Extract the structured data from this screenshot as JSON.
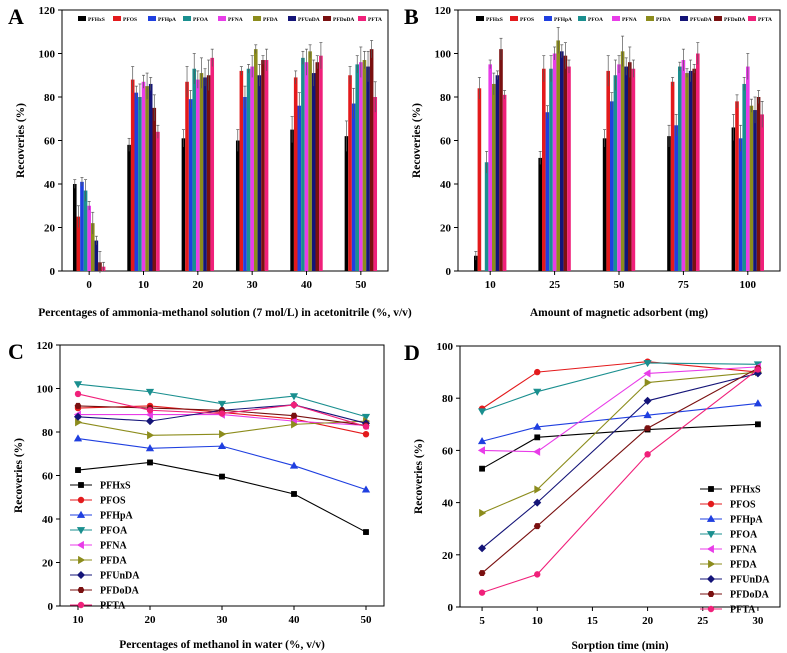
{
  "colors": [
    "#000000",
    "#e31a1c",
    "#1f3fe0",
    "#1a8f8f",
    "#e83ce8",
    "#8c8c1c",
    "#141478",
    "#7a1010",
    "#f0207a"
  ],
  "chart_data": [
    {
      "panel": "A",
      "type": "bar",
      "xlabel": "Percentages of ammonia-methanol solution (7 mol/L) in acetonitrile (%, v/v)",
      "ylabel": "Recoveries (%)",
      "ylim": [
        0,
        120
      ],
      "yticks": [
        0,
        20,
        40,
        60,
        80,
        100,
        120
      ],
      "categories": [
        "0",
        "10",
        "20",
        "30",
        "40",
        "50"
      ],
      "legend": "top",
      "series": [
        {
          "name": "PFHxS",
          "values": [
            40,
            58,
            61,
            60,
            65,
            62
          ]
        },
        {
          "name": "PFOS",
          "values": [
            25,
            88,
            87,
            92,
            89,
            90
          ]
        },
        {
          "name": "PFHpA",
          "values": [
            41,
            82,
            79,
            80,
            76,
            77
          ]
        },
        {
          "name": "PFOA",
          "values": [
            37,
            80,
            93,
            93,
            98,
            95
          ]
        },
        {
          "name": "PFNA",
          "values": [
            30,
            87,
            88,
            94,
            96,
            96
          ]
        },
        {
          "name": "PFDA",
          "values": [
            22,
            85,
            91,
            102,
            101,
            97
          ]
        },
        {
          "name": "PFUnDA",
          "values": [
            14,
            86,
            89,
            90,
            91,
            94
          ]
        },
        {
          "name": "PFDoDA",
          "values": [
            4,
            75,
            90,
            97,
            96,
            102
          ]
        },
        {
          "name": "PFTA",
          "values": [
            2,
            64,
            98,
            97,
            99,
            80
          ]
        }
      ]
    },
    {
      "panel": "B",
      "type": "bar",
      "xlabel": "Amount of magnetic adsorbent (mg)",
      "ylabel": "Recoveries (%)",
      "ylim": [
        0,
        120
      ],
      "yticks": [
        0,
        20,
        40,
        60,
        80,
        100,
        120
      ],
      "categories": [
        "10",
        "25",
        "50",
        "75",
        "100"
      ],
      "legend": "top",
      "series": [
        {
          "name": "PFHxS",
          "values": [
            7,
            52,
            61,
            62,
            66
          ]
        },
        {
          "name": "PFOS",
          "values": [
            84,
            93,
            92,
            87,
            78
          ]
        },
        {
          "name": "PFHpA",
          "values": [
            0,
            73,
            78,
            67,
            61
          ]
        },
        {
          "name": "PFOA",
          "values": [
            50,
            93,
            90,
            94,
            86
          ]
        },
        {
          "name": "PFNA",
          "values": [
            95,
            100,
            95,
            97,
            94
          ]
        },
        {
          "name": "PFDA",
          "values": [
            86,
            106,
            101,
            91,
            76
          ]
        },
        {
          "name": "PFUnDA",
          "values": [
            90,
            101,
            94,
            92,
            74
          ]
        },
        {
          "name": "PFDoDA",
          "values": [
            102,
            99,
            96,
            93,
            80
          ]
        },
        {
          "name": "PFTA",
          "values": [
            81,
            94,
            93,
            100,
            72
          ]
        }
      ]
    },
    {
      "panel": "C",
      "type": "line",
      "xlabel": "Percentages of methanol in water (%, v/v)",
      "ylabel": "Recoveries (%)",
      "xlim": [
        7.5,
        52.5
      ],
      "ylim": [
        0,
        120
      ],
      "xticks": [
        10,
        20,
        30,
        40,
        50
      ],
      "yticks": [
        0,
        20,
        40,
        60,
        80,
        100,
        120
      ],
      "x": [
        10,
        20,
        30,
        40,
        50
      ],
      "legend": "bottom-left",
      "series": [
        {
          "name": "PFHxS",
          "marker": "square",
          "values": [
            62.5,
            66,
            59.5,
            51.5,
            34
          ]
        },
        {
          "name": "PFOS",
          "marker": "circle",
          "values": [
            91,
            92,
            89,
            86,
            79
          ]
        },
        {
          "name": "PFHpA",
          "marker": "triangle-up",
          "values": [
            77,
            72.5,
            73.5,
            64.5,
            53.5
          ]
        },
        {
          "name": "PFOA",
          "marker": "triangle-down",
          "values": [
            102,
            98.5,
            93,
            96.5,
            87
          ]
        },
        {
          "name": "PFNA",
          "marker": "triangle-left",
          "values": [
            88,
            88,
            88,
            85,
            83
          ]
        },
        {
          "name": "PFDA",
          "marker": "triangle-right",
          "values": [
            84.5,
            78.5,
            79,
            83.5,
            85
          ]
        },
        {
          "name": "PFUnDA",
          "marker": "diamond",
          "values": [
            87,
            85,
            90,
            92.5,
            84
          ]
        },
        {
          "name": "PFDoDA",
          "marker": "hexagon",
          "values": [
            92,
            91,
            90,
            87.5,
            83
          ]
        },
        {
          "name": "PFTA",
          "marker": "circle",
          "values": [
            97.5,
            90,
            88.5,
            92.5,
            82.5
          ]
        }
      ]
    },
    {
      "panel": "D",
      "type": "line",
      "xlabel": "Sorption time (min)",
      "ylabel": "Recoveries (%)",
      "xlim": [
        3,
        32
      ],
      "ylim": [
        0,
        100
      ],
      "xticks": [
        5,
        10,
        15,
        20,
        25,
        30
      ],
      "yticks": [
        0,
        20,
        40,
        60,
        80,
        100
      ],
      "x": [
        5,
        10,
        20,
        30
      ],
      "legend": "bottom-right",
      "series": [
        {
          "name": "PFHxS",
          "marker": "square",
          "values": [
            53,
            65,
            68,
            70
          ]
        },
        {
          "name": "PFOS",
          "marker": "circle",
          "values": [
            76,
            90,
            94,
            90
          ]
        },
        {
          "name": "PFHpA",
          "marker": "triangle-up",
          "values": [
            63.5,
            69,
            73.5,
            78
          ]
        },
        {
          "name": "PFOA",
          "marker": "triangle-down",
          "values": [
            75,
            82.5,
            93.5,
            93
          ]
        },
        {
          "name": "PFNA",
          "marker": "triangle-left",
          "values": [
            60,
            59.5,
            89.5,
            92
          ]
        },
        {
          "name": "PFDA",
          "marker": "triangle-right",
          "values": [
            36,
            45,
            86,
            90
          ]
        },
        {
          "name": "PFUnDA",
          "marker": "diamond",
          "values": [
            22.5,
            40,
            79,
            89.5
          ]
        },
        {
          "name": "PFDoDA",
          "marker": "hexagon",
          "values": [
            13,
            31,
            68.5,
            91.5
          ]
        },
        {
          "name": "PFTA",
          "marker": "circle",
          "values": [
            5.5,
            12.5,
            58.5,
            91
          ]
        }
      ]
    }
  ]
}
